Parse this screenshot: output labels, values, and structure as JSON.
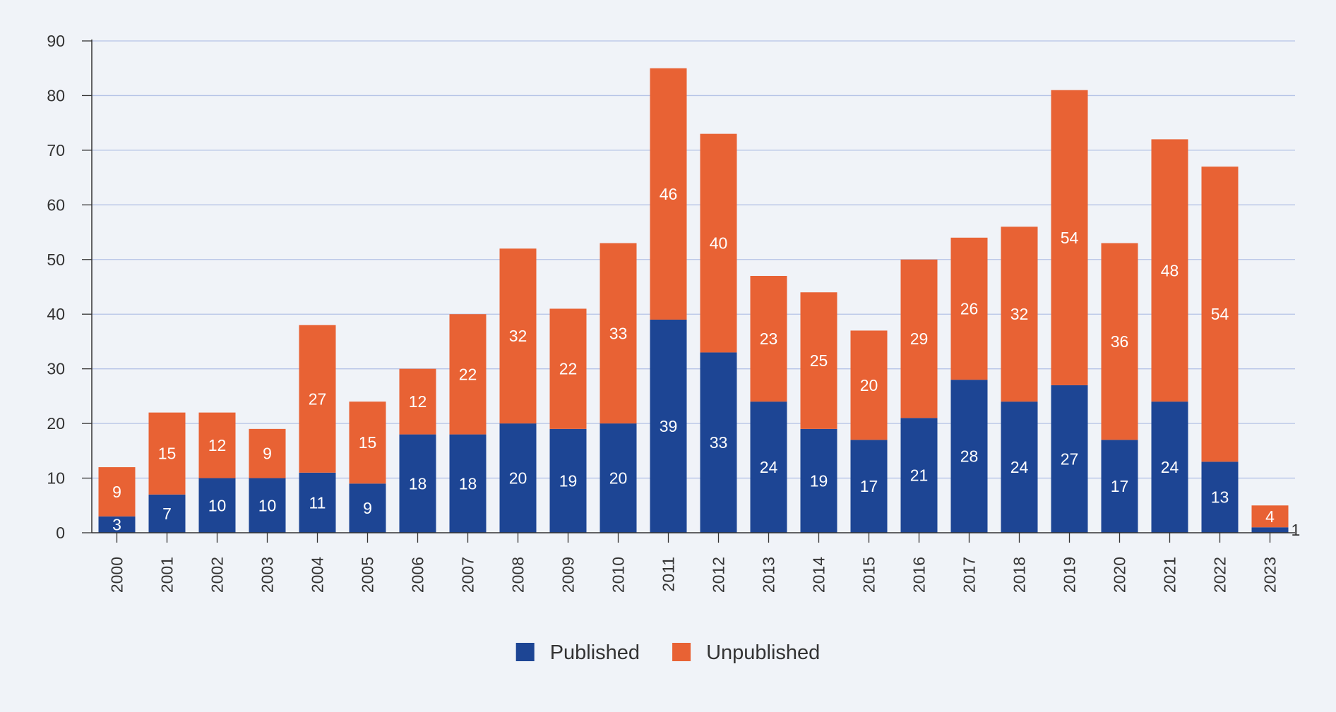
{
  "chart_data": {
    "type": "bar",
    "stacked": true,
    "categories": [
      "2000",
      "2001",
      "2002",
      "2003",
      "2004",
      "2005",
      "2006",
      "2007",
      "2008",
      "2009",
      "2010",
      "2011",
      "2012",
      "2013",
      "2014",
      "2015",
      "2016",
      "2017",
      "2018",
      "2019",
      "2020",
      "2021",
      "2022",
      "2023"
    ],
    "series": [
      {
        "name": "Published",
        "color": "#1d4594",
        "values": [
          3,
          7,
          10,
          10,
          11,
          9,
          18,
          18,
          20,
          19,
          20,
          39,
          33,
          24,
          19,
          17,
          21,
          28,
          24,
          27,
          17,
          24,
          13,
          1
        ]
      },
      {
        "name": "Unpublished",
        "color": "#e86234",
        "values": [
          9,
          15,
          12,
          9,
          27,
          15,
          12,
          22,
          32,
          22,
          33,
          46,
          40,
          23,
          25,
          20,
          29,
          26,
          32,
          54,
          36,
          48,
          54,
          4
        ]
      }
    ],
    "title": "",
    "xlabel": "",
    "ylabel": "",
    "ylim": [
      0,
      90
    ],
    "yticks": [
      0,
      10,
      20,
      30,
      40,
      50,
      60,
      70,
      80,
      90
    ],
    "grid": true,
    "legend_position": "bottom-center",
    "colors": {
      "background": "#f0f3f8",
      "gridline": "#b5c3e6",
      "axis": "#333333",
      "text": "#333333",
      "bar_label": "#ffffff"
    }
  }
}
